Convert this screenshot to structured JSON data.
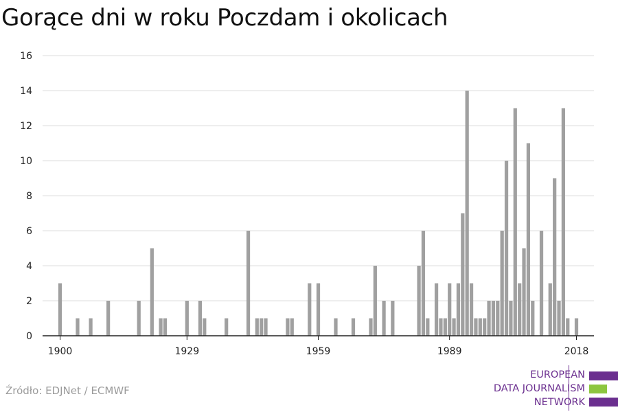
{
  "header": {
    "title": "Gorące dni w roku Poczdam i okolicach"
  },
  "footer": {
    "source": "Źródło: EDJNet / ECMWF"
  },
  "logo": {
    "lines": [
      "EUROPEAN",
      "DATA JOURNALISM",
      "NETWORK"
    ]
  },
  "colors": {
    "bar": "#a0a0a0",
    "grid": "#dcdcdc",
    "axis": "#222222",
    "logo_purple": "#6b2f8f",
    "logo_green": "#8dc63f"
  },
  "chart_data": {
    "type": "bar",
    "title": "Gorące dni w roku Poczdam i okolicach",
    "xlabel": "",
    "ylabel": "",
    "ylim": [
      0,
      16
    ],
    "xlim": [
      1896,
      2022
    ],
    "yticks": [
      0,
      2,
      4,
      6,
      8,
      10,
      12,
      14,
      16
    ],
    "xticks": [
      1900,
      1929,
      1959,
      1989,
      2018
    ],
    "grid": true,
    "x": [
      1900,
      1904,
      1907,
      1911,
      1918,
      1921,
      1923,
      1924,
      1929,
      1932,
      1933,
      1938,
      1943,
      1945,
      1946,
      1947,
      1952,
      1953,
      1957,
      1959,
      1963,
      1967,
      1971,
      1972,
      1974,
      1976,
      1982,
      1983,
      1984,
      1986,
      1987,
      1988,
      1989,
      1990,
      1991,
      1992,
      1993,
      1994,
      1995,
      1996,
      1997,
      1998,
      1999,
      2000,
      2001,
      2002,
      2003,
      2004,
      2005,
      2006,
      2007,
      2008,
      2010,
      2012,
      2013,
      2014,
      2015,
      2016,
      2018
    ],
    "values": [
      3,
      1,
      1,
      2,
      2,
      5,
      1,
      1,
      2,
      2,
      1,
      1,
      6,
      1,
      1,
      1,
      1,
      1,
      3,
      3,
      1,
      1,
      1,
      4,
      2,
      2,
      4,
      6,
      1,
      3,
      1,
      1,
      3,
      1,
      3,
      7,
      14,
      3,
      1,
      1,
      1,
      2,
      2,
      2,
      6,
      10,
      2,
      13,
      3,
      5,
      11,
      2,
      6,
      3,
      9,
      2,
      13,
      1,
      1
    ]
  }
}
